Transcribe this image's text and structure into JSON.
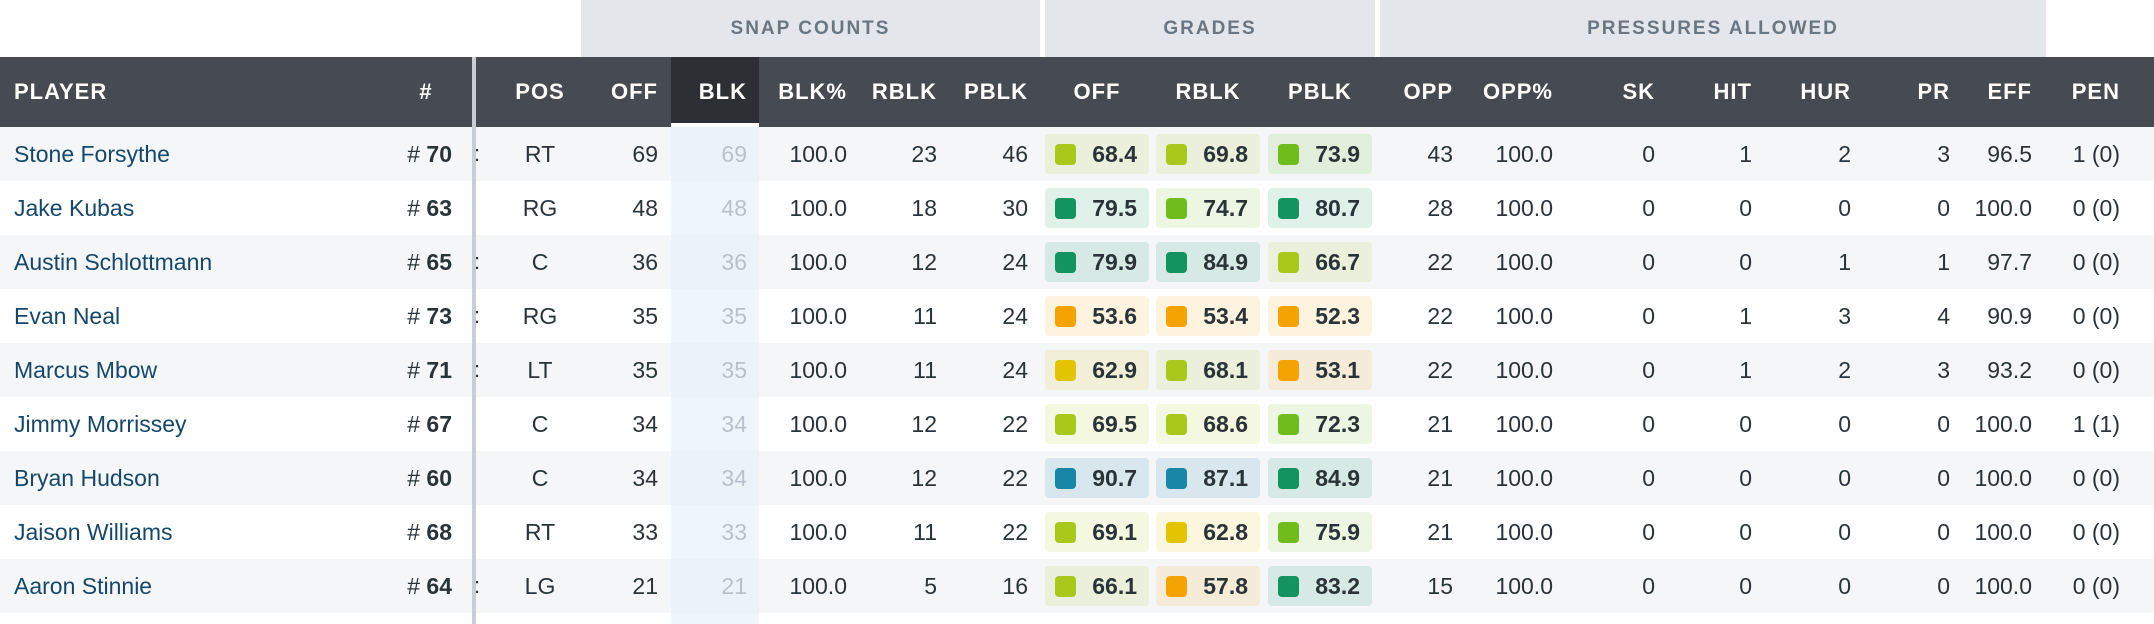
{
  "group_headers": [
    "SNAP COUNTS",
    "GRADES",
    "PRESSURES ALLOWED"
  ],
  "columns": {
    "player": "PLAYER",
    "num": "#",
    "pos": "POS",
    "off": "OFF",
    "blk": "BLK",
    "blk_pct": "BLK%",
    "rblk": "RBLK",
    "pblk": "PBLK",
    "g_off": "OFF",
    "g_rblk": "RBLK",
    "g_pblk": "PBLK",
    "opp": "OPP",
    "opp_pct": "OPP%",
    "sk": "SK",
    "hit": "HIT",
    "hur": "HUR",
    "pr": "PR",
    "eff": "EFF",
    "pen": "PEN"
  },
  "colors": {
    "header_bg": "#464b51",
    "active_header_bg": "#2c3035",
    "player_link": "#15476b",
    "grade_tiers": {
      "elite": "#1a86a6",
      "high": "#12935f",
      "good": "#6fbd1c",
      "above_avg": "#a8c81b",
      "avg": "#e3c400",
      "below_avg": "#f5a300"
    }
  },
  "rows": [
    {
      "player": "Stone Forsythe",
      "num_prefix": "# ",
      "num": "70",
      "colon": ":",
      "pos": "RT",
      "off": "69",
      "blk": "69",
      "blk_pct": "100.0",
      "rblk": "23",
      "pblk": "46",
      "g_off": "68.4",
      "g_rblk": "69.8",
      "g_pblk": "73.9",
      "t_off": "above_avg",
      "t_rblk": "above_avg",
      "t_pblk": "good",
      "opp": "43",
      "opp_pct": "100.0",
      "sk": "0",
      "hit": "1",
      "hur": "2",
      "pr": "3",
      "eff": "96.5",
      "pen": "1 (0)"
    },
    {
      "player": "Jake Kubas",
      "num_prefix": "# ",
      "num": "63",
      "colon": "",
      "pos": "RG",
      "off": "48",
      "blk": "48",
      "blk_pct": "100.0",
      "rblk": "18",
      "pblk": "30",
      "g_off": "79.5",
      "g_rblk": "74.7",
      "g_pblk": "80.7",
      "t_off": "high",
      "t_rblk": "good",
      "t_pblk": "high",
      "opp": "28",
      "opp_pct": "100.0",
      "sk": "0",
      "hit": "0",
      "hur": "0",
      "pr": "0",
      "eff": "100.0",
      "pen": "0 (0)"
    },
    {
      "player": "Austin Schlottmann",
      "num_prefix": "# ",
      "num": "65",
      "colon": ":",
      "pos": "C",
      "off": "36",
      "blk": "36",
      "blk_pct": "100.0",
      "rblk": "12",
      "pblk": "24",
      "g_off": "79.9",
      "g_rblk": "84.9",
      "g_pblk": "66.7",
      "t_off": "high",
      "t_rblk": "high",
      "t_pblk": "above_avg",
      "opp": "22",
      "opp_pct": "100.0",
      "sk": "0",
      "hit": "0",
      "hur": "1",
      "pr": "1",
      "eff": "97.7",
      "pen": "0 (0)"
    },
    {
      "player": "Evan Neal",
      "num_prefix": "# ",
      "num": "73",
      "colon": ":",
      "pos": "RG",
      "off": "35",
      "blk": "35",
      "blk_pct": "100.0",
      "rblk": "11",
      "pblk": "24",
      "g_off": "53.6",
      "g_rblk": "53.4",
      "g_pblk": "52.3",
      "t_off": "below_avg",
      "t_rblk": "below_avg",
      "t_pblk": "below_avg",
      "opp": "22",
      "opp_pct": "100.0",
      "sk": "0",
      "hit": "1",
      "hur": "3",
      "pr": "4",
      "eff": "90.9",
      "pen": "0 (0)"
    },
    {
      "player": "Marcus Mbow",
      "num_prefix": "# ",
      "num": "71",
      "colon": ":",
      "pos": "LT",
      "off": "35",
      "blk": "35",
      "blk_pct": "100.0",
      "rblk": "11",
      "pblk": "24",
      "g_off": "62.9",
      "g_rblk": "68.1",
      "g_pblk": "53.1",
      "t_off": "avg",
      "t_rblk": "above_avg",
      "t_pblk": "below_avg",
      "opp": "22",
      "opp_pct": "100.0",
      "sk": "0",
      "hit": "1",
      "hur": "2",
      "pr": "3",
      "eff": "93.2",
      "pen": "0 (0)"
    },
    {
      "player": "Jimmy Morrissey",
      "num_prefix": "# ",
      "num": "67",
      "colon": "",
      "pos": "C",
      "off": "34",
      "blk": "34",
      "blk_pct": "100.0",
      "rblk": "12",
      "pblk": "22",
      "g_off": "69.5",
      "g_rblk": "68.6",
      "g_pblk": "72.3",
      "t_off": "above_avg",
      "t_rblk": "above_avg",
      "t_pblk": "good",
      "opp": "21",
      "opp_pct": "100.0",
      "sk": "0",
      "hit": "0",
      "hur": "0",
      "pr": "0",
      "eff": "100.0",
      "pen": "1 (1)"
    },
    {
      "player": "Bryan Hudson",
      "num_prefix": "# ",
      "num": "60",
      "colon": "",
      "pos": "C",
      "off": "34",
      "blk": "34",
      "blk_pct": "100.0",
      "rblk": "12",
      "pblk": "22",
      "g_off": "90.7",
      "g_rblk": "87.1",
      "g_pblk": "84.9",
      "t_off": "elite",
      "t_rblk": "elite",
      "t_pblk": "high",
      "opp": "21",
      "opp_pct": "100.0",
      "sk": "0",
      "hit": "0",
      "hur": "0",
      "pr": "0",
      "eff": "100.0",
      "pen": "0 (0)"
    },
    {
      "player": "Jaison Williams",
      "num_prefix": "# ",
      "num": "68",
      "colon": "",
      "pos": "RT",
      "off": "33",
      "blk": "33",
      "blk_pct": "100.0",
      "rblk": "11",
      "pblk": "22",
      "g_off": "69.1",
      "g_rblk": "62.8",
      "g_pblk": "75.9",
      "t_off": "above_avg",
      "t_rblk": "avg",
      "t_pblk": "good",
      "opp": "21",
      "opp_pct": "100.0",
      "sk": "0",
      "hit": "0",
      "hur": "0",
      "pr": "0",
      "eff": "100.0",
      "pen": "0 (0)"
    },
    {
      "player": "Aaron Stinnie",
      "num_prefix": "# ",
      "num": "64",
      "colon": ":",
      "pos": "LG",
      "off": "21",
      "blk": "21",
      "blk_pct": "100.0",
      "rblk": "5",
      "pblk": "16",
      "g_off": "66.1",
      "g_rblk": "57.8",
      "g_pblk": "83.2",
      "t_off": "above_avg",
      "t_rblk": "below_avg",
      "t_pblk": "high",
      "opp": "15",
      "opp_pct": "100.0",
      "sk": "0",
      "hit": "0",
      "hur": "0",
      "pr": "0",
      "eff": "100.0",
      "pen": "0 (0)"
    }
  ]
}
